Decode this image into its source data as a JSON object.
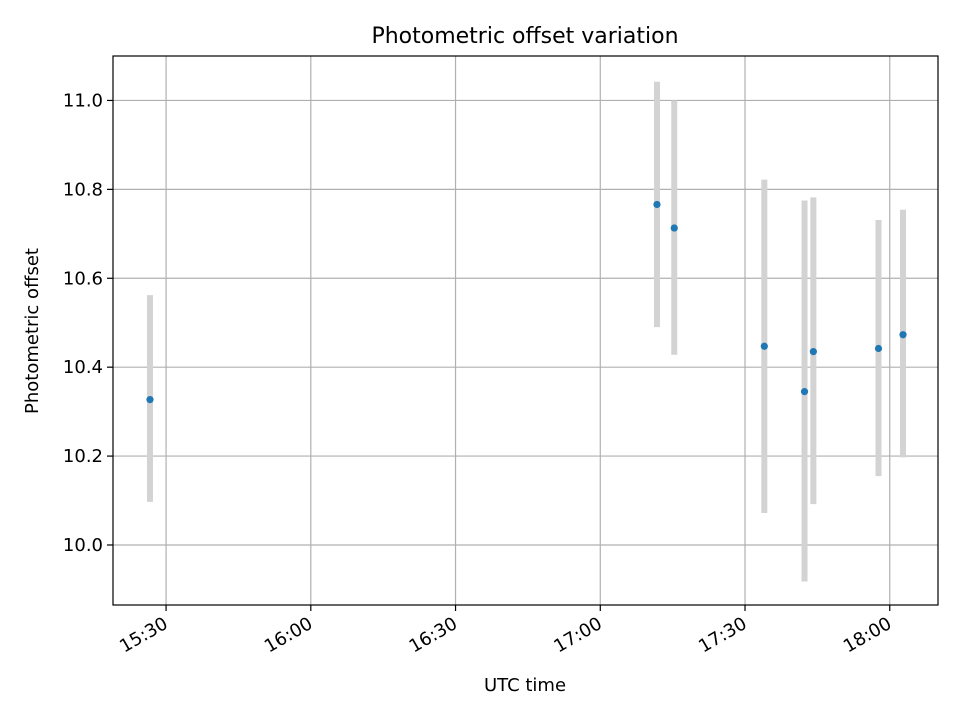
{
  "chart_data": {
    "type": "scatter",
    "title": "Photometric offset variation",
    "xlabel": "UTC time",
    "ylabel": "Photometric offset",
    "x_ticks": [
      "15:30",
      "16:00",
      "16:30",
      "17:00",
      "17:30",
      "18:00"
    ],
    "y_ticks": [
      "10.0",
      "10.2",
      "10.4",
      "10.6",
      "10.8",
      "11.0"
    ],
    "xlim": [
      "15:19",
      "18:10"
    ],
    "ylim": [
      9.865,
      11.1
    ],
    "grid": true,
    "series": [
      {
        "x": [
          "15:26:40",
          "17:11:45",
          "17:15:20",
          "17:34:00",
          "17:42:20",
          "17:44:10",
          "17:57:40",
          "18:02:45"
        ],
        "y": [
          10.327,
          10.766,
          10.713,
          10.447,
          10.345,
          10.435,
          10.442,
          10.473
        ],
        "error_low": [
          10.097,
          10.49,
          10.428,
          10.072,
          9.918,
          10.092,
          10.155,
          10.197
        ],
        "error_high": [
          10.562,
          11.042,
          11.0,
          10.822,
          10.775,
          10.782,
          10.731,
          10.754
        ],
        "color": "#1f77b4",
        "error_color": "#d3d3d3"
      }
    ]
  }
}
